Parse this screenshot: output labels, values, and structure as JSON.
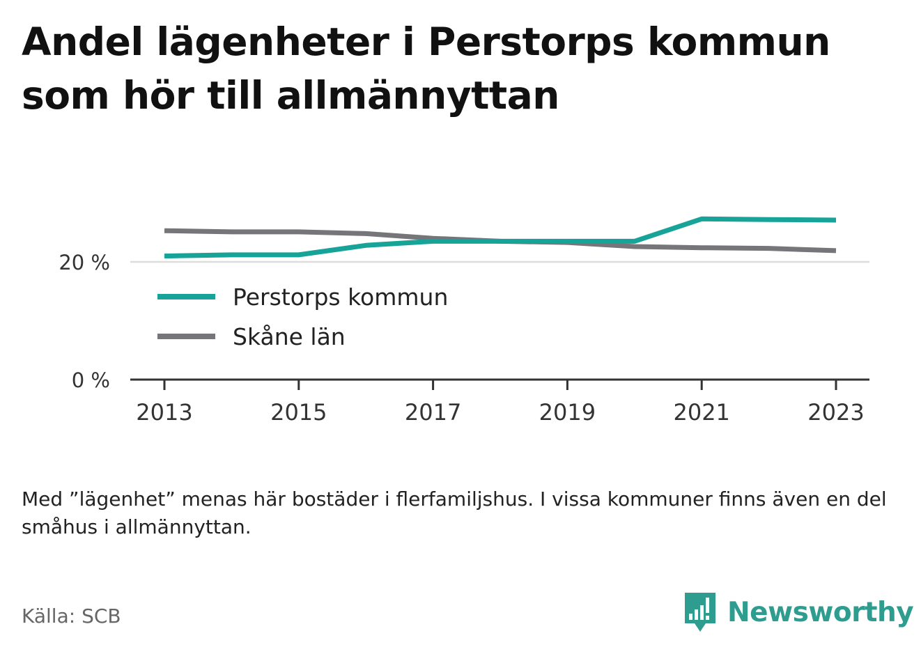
{
  "title": "Andel lägenheter i Perstorps kommun som hör till allmännyttan",
  "note": "Med ”lägenhet” menas här bostäder i flerfamiljshus. I vissa kommuner finns även en del småhus i allmännyttan.",
  "source": "Källa: SCB",
  "brand": {
    "name": "Newsworthy",
    "icon": "bar-chart-speech-bubble-icon",
    "color": "#2e9c8e"
  },
  "chart_data": {
    "type": "line",
    "x": [
      2013,
      2014,
      2015,
      2016,
      2017,
      2018,
      2019,
      2020,
      2021,
      2022,
      2023
    ],
    "x_ticks": [
      "2013",
      "2015",
      "2017",
      "2019",
      "2021",
      "2023"
    ],
    "y_ticks": [
      {
        "value": 0,
        "label": "0 %"
      },
      {
        "value": 20,
        "label": "20 %"
      }
    ],
    "ylim": [
      0,
      30
    ],
    "grid": true,
    "legend_position": "inside-left",
    "series": [
      {
        "name": "Perstorps kommun",
        "color": "#17a398",
        "values": [
          21.0,
          21.2,
          21.2,
          22.8,
          23.5,
          23.5,
          23.5,
          23.5,
          27.3,
          27.2,
          27.1
        ]
      },
      {
        "name": "Skåne län",
        "color": "#75757a",
        "values": [
          25.3,
          25.1,
          25.1,
          24.8,
          24.0,
          23.5,
          23.3,
          22.6,
          22.4,
          22.3,
          21.9
        ]
      }
    ]
  }
}
